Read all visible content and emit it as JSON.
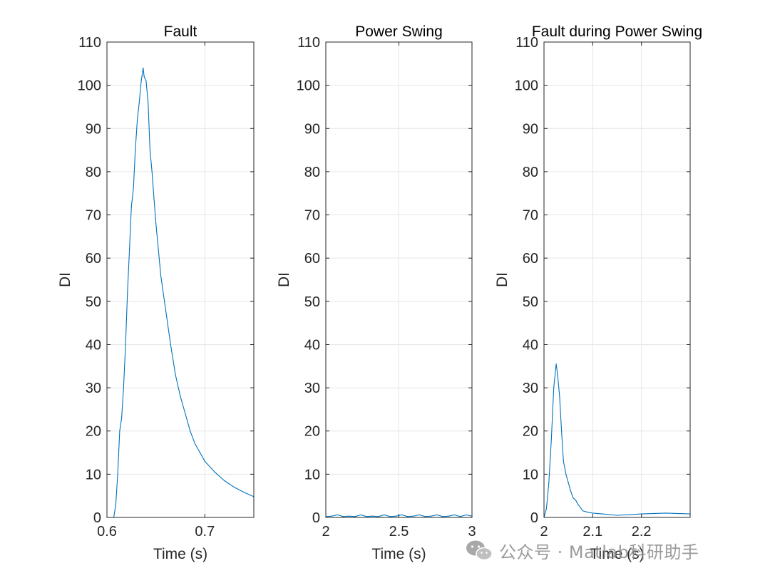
{
  "figure": {
    "background": "#ffffff",
    "line_color": "#0072BD",
    "grid_color": "#e6e6e6",
    "axis_color": "#262626"
  },
  "watermark": {
    "text": "公众号 · Matlab科研助手",
    "icon": "wechat-icon"
  },
  "chart_data": [
    {
      "type": "line",
      "title": "Fault",
      "xlabel": "Time (s)",
      "ylabel": "DI",
      "xlim": [
        0.6,
        0.75
      ],
      "ylim": [
        0,
        110
      ],
      "xticks": [
        0.6,
        0.7
      ],
      "xticklabels": [
        "0.6",
        "0.7"
      ],
      "yticks": [
        0,
        10,
        20,
        30,
        40,
        50,
        60,
        70,
        80,
        90,
        100,
        110
      ],
      "grid": true,
      "series": [
        {
          "x": [
            0.6,
            0.607,
            0.609,
            0.611,
            0.613,
            0.615,
            0.617,
            0.619,
            0.621,
            0.623,
            0.625,
            0.627,
            0.629,
            0.631,
            0.633,
            0.635,
            0.637,
            0.638,
            0.64,
            0.642,
            0.644,
            0.646,
            0.648,
            0.65,
            0.655,
            0.66,
            0.665,
            0.67,
            0.675,
            0.68,
            0.685,
            0.69,
            0.695,
            0.7,
            0.71,
            0.72,
            0.73,
            0.74,
            0.75
          ],
          "y": [
            0,
            0,
            3,
            10,
            20,
            23,
            30,
            40,
            52,
            62,
            72,
            76,
            85,
            92,
            96,
            101,
            104,
            102,
            101,
            96,
            85,
            80,
            74,
            68,
            56,
            48,
            40,
            33,
            28,
            24,
            20,
            17,
            15,
            13,
            10.5,
            8.5,
            7,
            5.8,
            4.8
          ]
        }
      ]
    },
    {
      "type": "line",
      "title": "Power Swing",
      "xlabel": "Time (s)",
      "ylabel": "DI",
      "xlim": [
        2,
        3
      ],
      "ylim": [
        0,
        110
      ],
      "xticks": [
        2,
        2.5,
        3
      ],
      "xticklabels": [
        "2",
        "2.5",
        "3"
      ],
      "yticks": [
        0,
        10,
        20,
        30,
        40,
        50,
        60,
        70,
        80,
        90,
        100,
        110
      ],
      "grid": true,
      "series": [
        {
          "x": [
            2.0,
            2.04,
            2.08,
            2.12,
            2.16,
            2.2,
            2.24,
            2.28,
            2.32,
            2.36,
            2.4,
            2.44,
            2.48,
            2.52,
            2.56,
            2.6,
            2.64,
            2.68,
            2.72,
            2.76,
            2.8,
            2.84,
            2.88,
            2.92,
            2.96,
            3.0
          ],
          "y": [
            0.2,
            0.3,
            0.6,
            0.2,
            0.3,
            0.2,
            0.6,
            0.2,
            0.3,
            0.2,
            0.6,
            0.2,
            0.3,
            0.6,
            0.2,
            0.3,
            0.6,
            0.2,
            0.3,
            0.6,
            0.2,
            0.3,
            0.6,
            0.2,
            0.6,
            0.3
          ]
        }
      ]
    },
    {
      "type": "line",
      "title": "Fault during Power Swing",
      "xlabel": "Time (s)",
      "ylabel": "DI",
      "xlim": [
        2,
        2.3
      ],
      "ylim": [
        0,
        110
      ],
      "xticks": [
        2,
        2.1,
        2.2
      ],
      "xticklabels": [
        "2",
        "2.1",
        "2.2"
      ],
      "yticks": [
        0,
        10,
        20,
        30,
        40,
        50,
        60,
        70,
        80,
        90,
        100,
        110
      ],
      "grid": true,
      "series": [
        {
          "x": [
            2.0,
            2.005,
            2.01,
            2.015,
            2.02,
            2.025,
            2.028,
            2.032,
            2.036,
            2.04,
            2.045,
            2.05,
            2.055,
            2.06,
            2.065,
            2.07,
            2.08,
            2.09,
            2.1,
            2.12,
            2.15,
            2.2,
            2.25,
            2.3
          ],
          "y": [
            0,
            2,
            8,
            18,
            30,
            35.5,
            33,
            28,
            20,
            13,
            10,
            8,
            6,
            4.5,
            4,
            3,
            1.5,
            1.2,
            1,
            0.8,
            0.5,
            0.8,
            1,
            0.8
          ]
        }
      ]
    }
  ]
}
